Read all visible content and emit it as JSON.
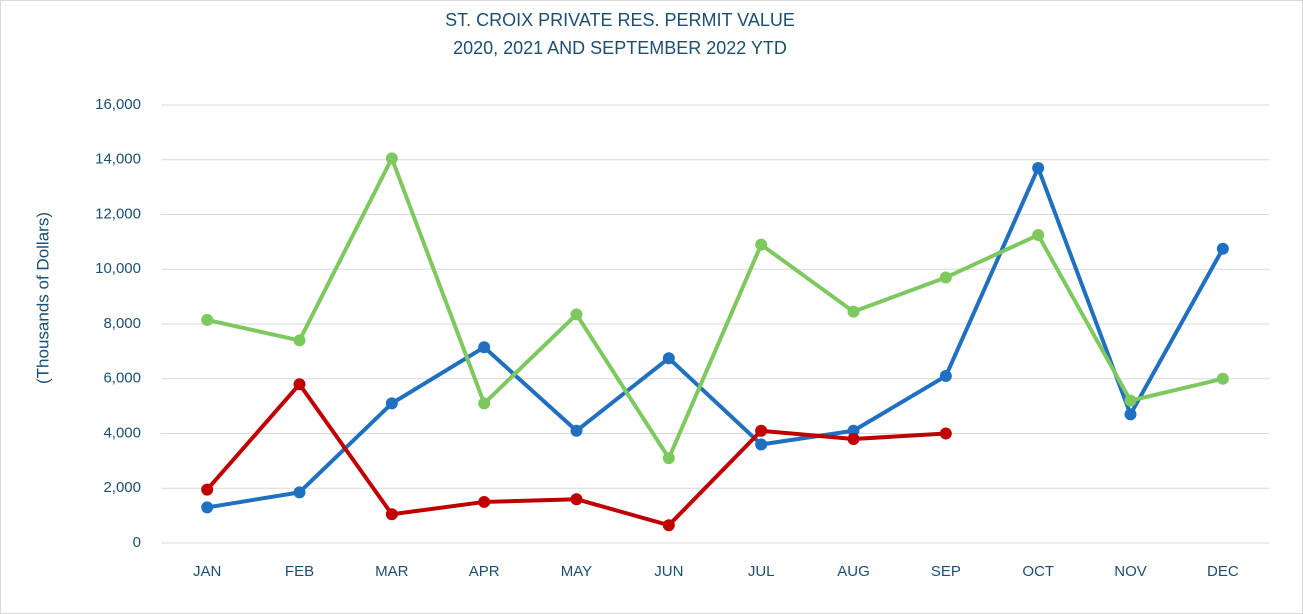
{
  "chart_data": {
    "type": "line",
    "title": "ST. CROIX PRIVATE RES. PERMIT VALUE",
    "subtitle": "2020, 2021 AND SEPTEMBER 2022 YTD",
    "y_label": "(Thousands of Dollars)",
    "categories": [
      "JAN",
      "FEB",
      "MAR",
      "APR",
      "MAY",
      "JUN",
      "JUL",
      "AUG",
      "SEP",
      "OCT",
      "NOV",
      "DEC"
    ],
    "series": [
      {
        "color": "#1f70c1",
        "values": [
          1300,
          1850,
          5100,
          7150,
          4100,
          6750,
          3600,
          4100,
          6100,
          13700,
          4700,
          10750
        ]
      },
      {
        "color": "#7ec95f",
        "values": [
          8150,
          7400,
          14050,
          5100,
          8350,
          3100,
          10900,
          8450,
          9700,
          11250,
          5200,
          6000
        ]
      },
      {
        "color": "#c00000",
        "values": [
          1950,
          5800,
          1050,
          1500,
          1600,
          650,
          4100,
          3800,
          4000,
          null,
          null,
          null
        ]
      }
    ],
    "ylim": [
      0,
      16000
    ],
    "yticks": [
      0,
      {
        "value": 2000,
        "label": "2,000"
      },
      {
        "value": 4000,
        "label": "4,000"
      },
      {
        "value": 6000,
        "label": "6,000"
      },
      {
        "value": 8000,
        "label": "8,000"
      },
      {
        "value": 10000,
        "label": "10,000"
      },
      {
        "value": 12000,
        "label": "12,000"
      },
      {
        "value": 14000,
        "label": "14,000"
      },
      {
        "value": 16000,
        "label": "16,000"
      }
    ],
    "grid": true
  }
}
